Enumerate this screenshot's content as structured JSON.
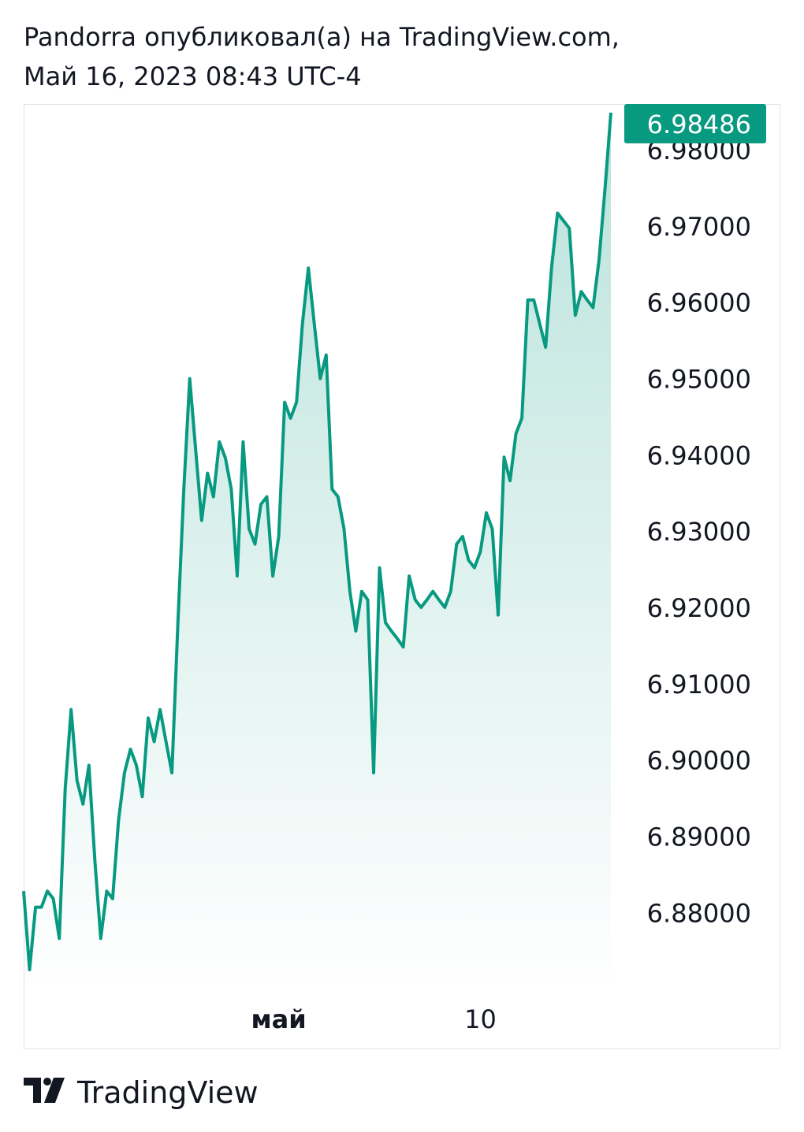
{
  "header": {
    "line1": "Pandorra опубликовал(а) на TradingView.com,",
    "line2": "Май 16, 2023 08:43 UTC-4"
  },
  "footer": {
    "brand": "TradingView"
  },
  "chart_data": {
    "type": "area",
    "categories": [
      null,
      null,
      null,
      null,
      null,
      null,
      null,
      null,
      null,
      null,
      null,
      null,
      null,
      null,
      null,
      null,
      null,
      null,
      null,
      null,
      null,
      null,
      null,
      null,
      null,
      null,
      null,
      null,
      null,
      null,
      null,
      null,
      null,
      null,
      null,
      null,
      null,
      null,
      null,
      null,
      null,
      null,
      null,
      "май",
      null,
      null,
      null,
      null,
      null,
      null,
      null,
      null,
      null,
      null,
      null,
      null,
      null,
      null,
      null,
      null,
      null,
      null,
      null,
      null,
      null,
      null,
      null,
      null,
      null,
      null,
      null,
      null,
      null,
      null,
      null,
      null,
      null,
      "10",
      null,
      null,
      null,
      null,
      null,
      null,
      null,
      null,
      null,
      null,
      null,
      null,
      null,
      null,
      null,
      null,
      null,
      null,
      null,
      null,
      null,
      null
    ],
    "series": [
      {
        "color": "#089981",
        "last_label": "6.98486",
        "values": [
          6.8828,
          6.8725,
          6.8807,
          6.8807,
          6.8828,
          6.8818,
          6.8766,
          6.8962,
          6.9066,
          6.8973,
          6.8942,
          6.8993,
          6.8869,
          6.8766,
          6.8828,
          6.8818,
          6.8921,
          6.8983,
          6.9014,
          6.8993,
          6.8952,
          6.9055,
          6.9024,
          6.9066,
          6.9024,
          6.8983,
          6.918,
          6.9355,
          6.95,
          6.9407,
          6.9314,
          6.9376,
          6.9345,
          6.9417,
          6.9396,
          6.9355,
          6.9241,
          6.9417,
          6.9303,
          6.9283,
          6.9335,
          6.9345,
          6.9241,
          6.9293,
          6.9469,
          6.9448,
          6.9469,
          6.9572,
          6.9645,
          6.9572,
          6.95,
          6.9531,
          6.9355,
          6.9345,
          6.9303,
          6.9221,
          6.9169,
          6.9221,
          6.921,
          6.8983,
          6.9252,
          6.918,
          6.9169,
          6.9159,
          6.9148,
          6.9241,
          6.921,
          6.92,
          6.921,
          6.9221,
          6.921,
          6.92,
          6.9221,
          6.9283,
          6.9293,
          6.9262,
          6.9252,
          6.9273,
          6.9324,
          6.9303,
          6.919,
          6.9397,
          6.9366,
          6.9428,
          6.9448,
          6.9603,
          6.9603,
          6.9572,
          6.9541,
          6.9645,
          6.9717,
          6.9707,
          6.9697,
          6.9583,
          6.9614,
          6.9603,
          6.9593,
          6.9655,
          6.9748,
          6.98486
        ]
      }
    ],
    "ylim": [
      6.8695,
      6.986
    ],
    "yticks": [
      {
        "value": 6.88,
        "label": "6.88000"
      },
      {
        "value": 6.89,
        "label": "6.89000"
      },
      {
        "value": 6.9,
        "label": "6.90000"
      },
      {
        "value": 6.91,
        "label": "6.91000"
      },
      {
        "value": 6.92,
        "label": "6.92000"
      },
      {
        "value": 6.93,
        "label": "6.93000"
      },
      {
        "value": 6.94,
        "label": "6.94000"
      },
      {
        "value": 6.95,
        "label": "6.95000"
      },
      {
        "value": 6.96,
        "label": "6.96000"
      },
      {
        "value": 6.97,
        "label": "6.97000"
      },
      {
        "value": 6.98,
        "label": "6.98000"
      }
    ],
    "grid": false
  }
}
